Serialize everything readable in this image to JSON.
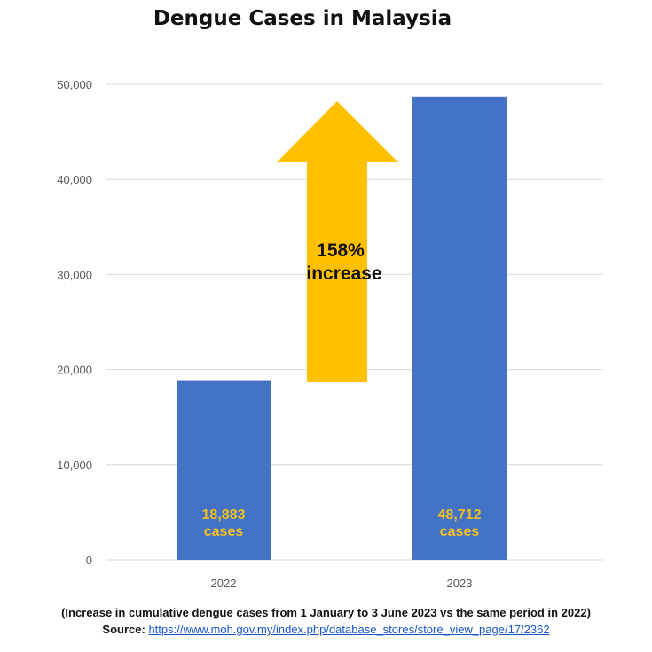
{
  "chart_data": {
    "type": "bar",
    "title": "Dengue Cases in Malaysia",
    "categories": [
      "2022",
      "2023"
    ],
    "values": [
      18883,
      48712
    ],
    "data_labels": [
      {
        "value": "18,883",
        "unit": "cases"
      },
      {
        "value": "48,712",
        "unit": "cases"
      }
    ],
    "ylim": [
      0,
      50000
    ],
    "yticks": [
      "0",
      "10,000",
      "20,000",
      "30,000",
      "40,000",
      "50,000"
    ],
    "grid": true,
    "xlabel": "",
    "ylabel": "",
    "annotation": {
      "line1": "158%",
      "line2": "increase"
    },
    "colors": {
      "bar": "#4472c4",
      "arrow": "#ffc000",
      "data_label": "#f0c020",
      "grid": "#d9d9d9"
    }
  },
  "footnote": "(Increase in cumulative dengue cases from 1 January to 3 June 2023 vs the same period in 2022)",
  "source": {
    "label": "Source:",
    "url": "https://www.moh.gov.my/index.php/database_stores/store_view_page/17/2362"
  }
}
